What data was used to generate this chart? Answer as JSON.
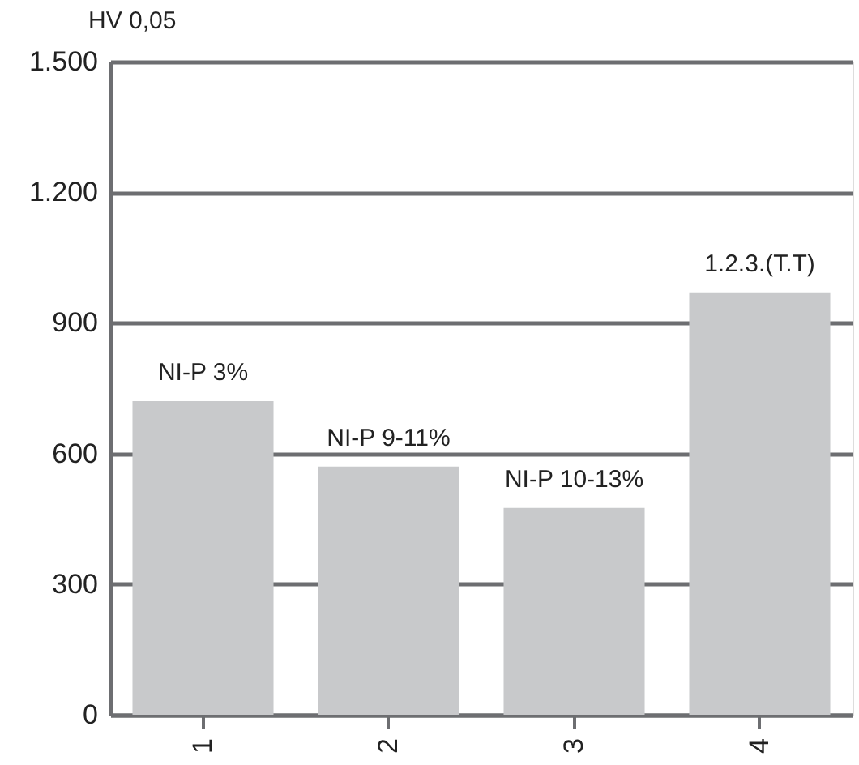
{
  "chart_data": {
    "type": "bar",
    "ylabel": "HV 0,05",
    "categories": [
      "1",
      "2",
      "3",
      "4"
    ],
    "values": [
      720,
      570,
      475,
      970
    ],
    "color": "#c8c9cb",
    "ylim": [
      0,
      1500
    ],
    "yticks": [
      0,
      300,
      600,
      900,
      {
        "value": 1200,
        "label": "1.200"
      },
      {
        "value": 1500,
        "label": "1.500"
      }
    ],
    "grid": "y",
    "annotations": [
      {
        "text": "NI-P 3%",
        "x": "1",
        "y": 720
      },
      {
        "text": "NI-P 9-11%",
        "x": "2",
        "y": 570
      },
      {
        "text": "NI-P 10-13%",
        "x": "3",
        "y": 475
      },
      {
        "text": "1.2.3.(T.T)",
        "x": "4",
        "y": 970
      }
    ]
  }
}
